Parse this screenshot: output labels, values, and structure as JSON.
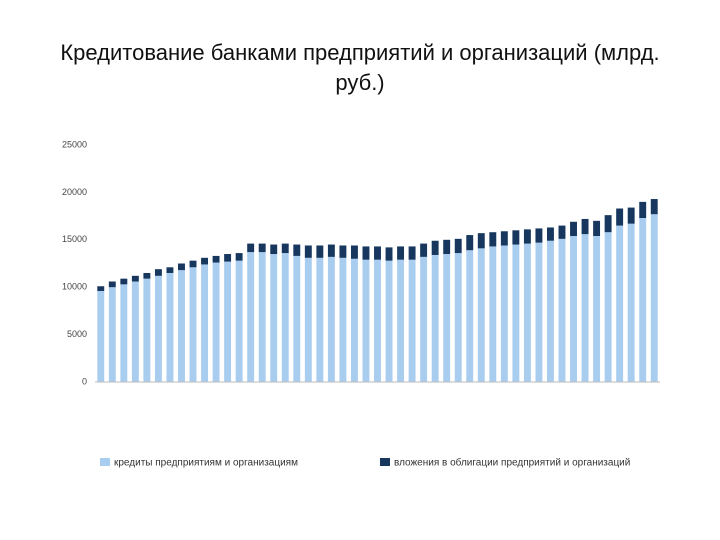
{
  "chart_data": {
    "type": "stacked_bar",
    "title": "Кредитование банками предприятий и организаций (млрд. руб.)",
    "categories": [
      null,
      null,
      null,
      null,
      null,
      null,
      null,
      null,
      null,
      null,
      null,
      null,
      null,
      null,
      null,
      null,
      null,
      null,
      null,
      null,
      null,
      null,
      null,
      null,
      null,
      null,
      null,
      null,
      null,
      null,
      null,
      null,
      null,
      null,
      null,
      null,
      null,
      null,
      null,
      null,
      null,
      null,
      null,
      null,
      null,
      null,
      null,
      null,
      null
    ],
    "series": [
      {
        "name": "кредиты предприятиям и организациям",
        "color": "#a9cdef",
        "values": [
          9600,
          10000,
          10300,
          10600,
          10900,
          11200,
          11500,
          11800,
          12100,
          12400,
          12600,
          12700,
          12800,
          13700,
          13700,
          13500,
          13600,
          13300,
          13100,
          13100,
          13200,
          13100,
          13000,
          12900,
          12900,
          12800,
          12900,
          12900,
          13200,
          13400,
          13500,
          13600,
          13900,
          14100,
          14300,
          14400,
          14500,
          14600,
          14700,
          14900,
          15100,
          15400,
          15600,
          15400,
          15800,
          16500,
          16700,
          17300,
          17700
        ]
      },
      {
        "name": "вложения в облигации предприятий и организаций",
        "color": "#17375e",
        "values": [
          500,
          600,
          600,
          600,
          600,
          700,
          600,
          700,
          700,
          700,
          700,
          800,
          800,
          900,
          900,
          1000,
          1000,
          1200,
          1300,
          1300,
          1300,
          1300,
          1400,
          1400,
          1400,
          1400,
          1400,
          1400,
          1400,
          1500,
          1500,
          1500,
          1600,
          1600,
          1500,
          1500,
          1500,
          1500,
          1500,
          1400,
          1400,
          1500,
          1600,
          1600,
          1800,
          1800,
          1700,
          1700,
          1600
        ]
      }
    ],
    "ylim": [
      0,
      25000
    ],
    "yticks": [
      0,
      5000,
      10000,
      15000,
      20000,
      25000
    ],
    "grid": false,
    "legend": "bottom"
  }
}
